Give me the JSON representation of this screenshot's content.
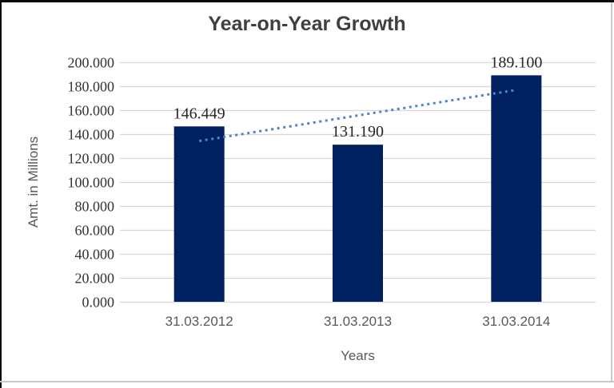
{
  "chart": {
    "title": "Year-on-Year Growth",
    "y_axis_title": "Amt. in Millions",
    "x_axis_title": "Years"
  },
  "chart_data": {
    "type": "bar",
    "title": "Year-on-Year Growth",
    "xlabel": "Years",
    "ylabel": "Amt. in Millions",
    "categories": [
      "31.03.2012",
      "31.03.2013",
      "31.03.2014"
    ],
    "values": [
      146.449,
      131.19,
      189.1
    ],
    "data_labels": [
      "146.449",
      "131.190",
      "189.100"
    ],
    "y_ticks": [
      "0.000",
      "20.000",
      "40.000",
      "60.000",
      "80.000",
      "100.000",
      "120.000",
      "140.000",
      "160.000",
      "180.000",
      "200.000"
    ],
    "ylim": [
      0,
      200
    ],
    "grid": true,
    "legend": false,
    "trendline": {
      "fit": "linear",
      "style": "dotted"
    },
    "colors": {
      "bar": "#002060",
      "trendline": "#4a86c8",
      "gridline": "#d7d7d7",
      "title": "#3f3f3f",
      "data_label": "#262626",
      "tick_label": "#333333",
      "category_label": "#595959",
      "axis_title": "#595959",
      "frame_black": "#0a0a0a",
      "frame_gray": "#c9c9c9"
    }
  }
}
